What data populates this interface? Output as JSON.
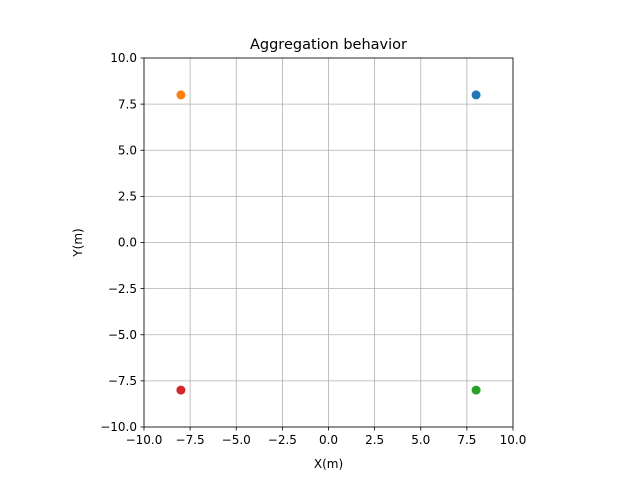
{
  "chart_data": {
    "type": "scatter",
    "title": "Aggregation behavior",
    "xlabel": "X(m)",
    "ylabel": "Y(m)",
    "xlim": [
      -10,
      10
    ],
    "ylim": [
      -10,
      10
    ],
    "xticks": [
      -10,
      -7.5,
      -5,
      -2.5,
      0,
      2.5,
      5,
      7.5,
      10
    ],
    "yticks": [
      -10,
      -7.5,
      -5,
      -2.5,
      0,
      2.5,
      5,
      7.5,
      10
    ],
    "xtick_labels": [
      "−10.0",
      "−7.5",
      "−5.0",
      "−2.5",
      "0.0",
      "2.5",
      "5.0",
      "7.5",
      "10.0"
    ],
    "ytick_labels": [
      "−10.0",
      "−7.5",
      "−5.0",
      "−2.5",
      "0.0",
      "2.5",
      "5.0",
      "7.5",
      "10.0"
    ],
    "grid": true,
    "series": [
      {
        "x": [
          8
        ],
        "y": [
          8
        ],
        "color": "#1f77b4"
      },
      {
        "x": [
          -8
        ],
        "y": [
          8
        ],
        "color": "#ff7f0e"
      },
      {
        "x": [
          8
        ],
        "y": [
          -8
        ],
        "color": "#2ca02c"
      },
      {
        "x": [
          -8
        ],
        "y": [
          -8
        ],
        "color": "#d62728"
      }
    ]
  }
}
